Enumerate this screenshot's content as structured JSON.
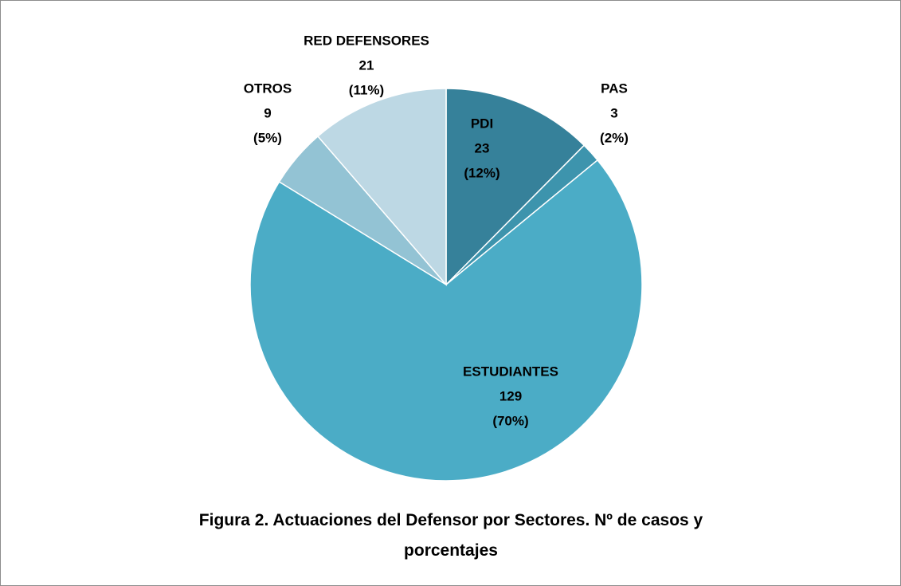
{
  "chart_data": {
    "type": "pie",
    "title": "Figura 2. Actuaciones del Defensor por Sectores. Nº de casos y porcentajes",
    "categories": [
      "PDI",
      "PAS",
      "ESTUDIANTES",
      "OTROS",
      "RED DEFENSORES"
    ],
    "values": [
      23,
      3,
      129,
      9,
      21
    ],
    "percent_values": [
      12,
      2,
      70,
      5,
      11
    ],
    "percent_labels": [
      "(12%)",
      "(2%)",
      "(70%)",
      "(5%)",
      "(11%)"
    ],
    "colors": [
      "#36819a",
      "#3d94ad",
      "#4bacc6",
      "#93c3d4",
      "#bdd8e4"
    ]
  }
}
